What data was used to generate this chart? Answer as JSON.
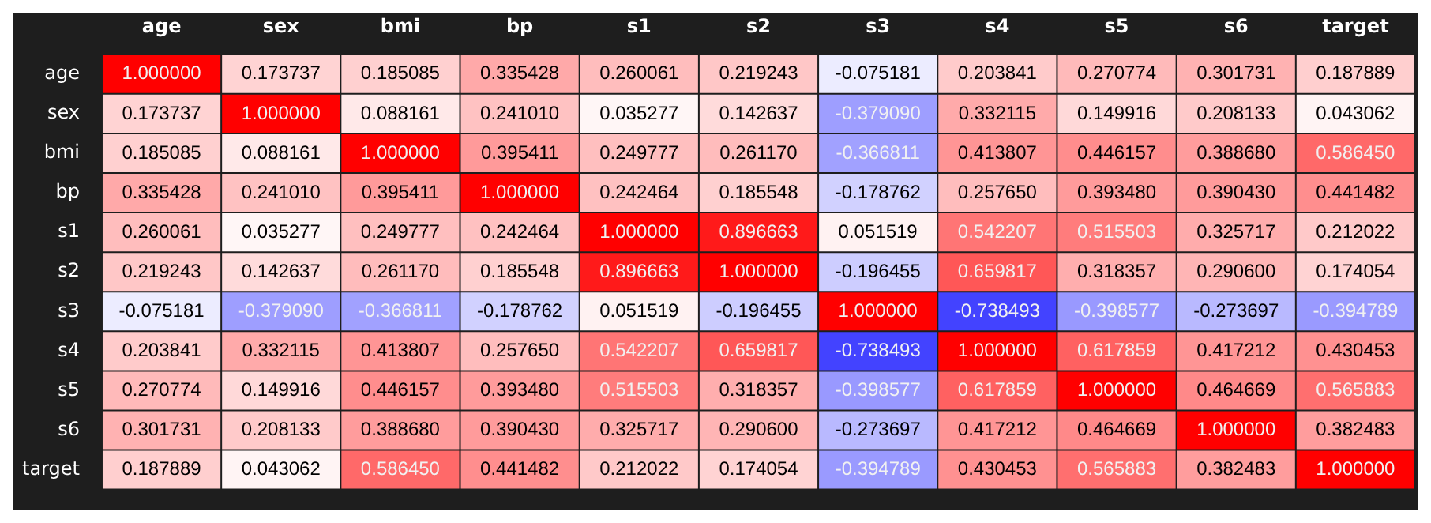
{
  "chart_data": {
    "type": "heatmap",
    "categories": [
      "age",
      "sex",
      "bmi",
      "bp",
      "s1",
      "s2",
      "s3",
      "s4",
      "s5",
      "s6",
      "target"
    ],
    "y_categories": [
      "age",
      "sex",
      "bmi",
      "bp",
      "s1",
      "s2",
      "s3",
      "s4",
      "s5",
      "s6",
      "target"
    ],
    "cells": [
      [
        1.0,
        0.173737,
        0.185085,
        0.335428,
        0.260061,
        0.219243,
        -0.075181,
        0.203841,
        0.270774,
        0.301731,
        0.187889
      ],
      [
        0.173737,
        1.0,
        0.088161,
        0.24101,
        0.035277,
        0.142637,
        -0.37909,
        0.332115,
        0.149916,
        0.208133,
        0.043062
      ],
      [
        0.185085,
        0.088161,
        1.0,
        0.395411,
        0.249777,
        0.26117,
        -0.366811,
        0.413807,
        0.446157,
        0.38868,
        0.58645
      ],
      [
        0.335428,
        0.24101,
        0.395411,
        1.0,
        0.242464,
        0.185548,
        -0.178762,
        0.25765,
        0.39348,
        0.39043,
        0.441482
      ],
      [
        0.260061,
        0.035277,
        0.249777,
        0.242464,
        1.0,
        0.896663,
        0.051519,
        0.542207,
        0.515503,
        0.325717,
        0.212022
      ],
      [
        0.219243,
        0.142637,
        0.26117,
        0.185548,
        0.896663,
        1.0,
        -0.196455,
        0.659817,
        0.318357,
        0.2906,
        0.174054
      ],
      [
        -0.075181,
        -0.37909,
        -0.366811,
        -0.178762,
        0.051519,
        -0.196455,
        1.0,
        -0.738493,
        -0.398577,
        -0.273697,
        -0.394789
      ],
      [
        0.203841,
        0.332115,
        0.413807,
        0.25765,
        0.542207,
        0.659817,
        -0.738493,
        1.0,
        0.617859,
        0.417212,
        0.430453
      ],
      [
        0.270774,
        0.149916,
        0.446157,
        0.39348,
        0.515503,
        0.318357,
        -0.398577,
        0.617859,
        1.0,
        0.464669,
        0.565883
      ],
      [
        0.301731,
        0.208133,
        0.38868,
        0.39043,
        0.325717,
        0.2906,
        -0.273697,
        0.417212,
        0.464669,
        1.0,
        0.382483
      ],
      [
        0.187889,
        0.043062,
        0.58645,
        0.441482,
        0.212022,
        0.174054,
        -0.394789,
        0.430453,
        0.565883,
        0.382483,
        1.0
      ]
    ],
    "cell_labels": [
      [
        "1.000000",
        "0.173737",
        "0.185085",
        "0.335428",
        "0.260061",
        "0.219243",
        "-0.075181",
        "0.203841",
        "0.270774",
        "0.301731",
        "0.187889"
      ],
      [
        "0.173737",
        "1.000000",
        "0.088161",
        "0.241010",
        "0.035277",
        "0.142637",
        "-0.379090",
        "0.332115",
        "0.149916",
        "0.208133",
        "0.043062"
      ],
      [
        "0.185085",
        "0.088161",
        "1.000000",
        "0.395411",
        "0.249777",
        "0.261170",
        "-0.366811",
        "0.413807",
        "0.446157",
        "0.388680",
        "0.586450"
      ],
      [
        "0.335428",
        "0.241010",
        "0.395411",
        "1.000000",
        "0.242464",
        "0.185548",
        "-0.178762",
        "0.257650",
        "0.393480",
        "0.390430",
        "0.441482"
      ],
      [
        "0.260061",
        "0.035277",
        "0.249777",
        "0.242464",
        "1.000000",
        "0.896663",
        "0.051519",
        "0.542207",
        "0.515503",
        "0.325717",
        "0.212022"
      ],
      [
        "0.219243",
        "0.142637",
        "0.261170",
        "0.185548",
        "0.896663",
        "1.000000",
        "-0.196455",
        "0.659817",
        "0.318357",
        "0.290600",
        "0.174054"
      ],
      [
        "-0.075181",
        "-0.379090",
        "-0.366811",
        "-0.178762",
        "0.051519",
        "-0.196455",
        "1.000000",
        "-0.738493",
        "-0.398577",
        "-0.273697",
        "-0.394789"
      ],
      [
        "0.203841",
        "0.332115",
        "0.413807",
        "0.257650",
        "0.542207",
        "0.659817",
        "-0.738493",
        "1.000000",
        "0.617859",
        "0.417212",
        "0.430453"
      ],
      [
        "0.270774",
        "0.149916",
        "0.446157",
        "0.393480",
        "0.515503",
        "0.318357",
        "-0.398577",
        "0.617859",
        "1.000000",
        "0.464669",
        "0.565883"
      ],
      [
        "0.301731",
        "0.208133",
        "0.388680",
        "0.390430",
        "0.325717",
        "0.290600",
        "-0.273697",
        "0.417212",
        "0.464669",
        "1.000000",
        "0.382483"
      ],
      [
        "0.187889",
        "0.043062",
        "0.586450",
        "0.441482",
        "0.212022",
        "0.174054",
        "-0.394789",
        "0.430453",
        "0.565883",
        "0.382483",
        "1.000000"
      ]
    ],
    "data_labels": true
  }
}
